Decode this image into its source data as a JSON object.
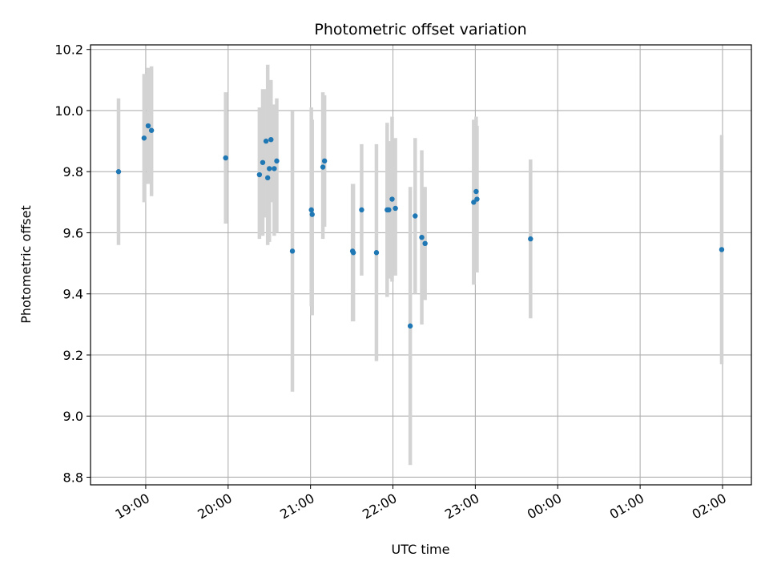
{
  "chart_data": {
    "type": "scatter",
    "title": "Photometric offset variation",
    "xlabel": "UTC time",
    "ylabel": "Photometric offset",
    "x_axis": {
      "unit": "hours",
      "range": [
        18.33,
        26.35
      ],
      "ticks": [
        {
          "value": 19,
          "label": "19:00"
        },
        {
          "value": 20,
          "label": "20:00"
        },
        {
          "value": 21,
          "label": "21:00"
        },
        {
          "value": 22,
          "label": "22:00"
        },
        {
          "value": 23,
          "label": "23:00"
        },
        {
          "value": 24,
          "label": "00:00"
        },
        {
          "value": 25,
          "label": "01:00"
        },
        {
          "value": 26,
          "label": "02:00"
        }
      ]
    },
    "y_axis": {
      "range": [
        8.775,
        10.215
      ],
      "ticks": [
        {
          "value": 8.8,
          "label": "8.8"
        },
        {
          "value": 9.0,
          "label": "9.0"
        },
        {
          "value": 9.2,
          "label": "9.2"
        },
        {
          "value": 9.4,
          "label": "9.4"
        },
        {
          "value": 9.6,
          "label": "9.6"
        },
        {
          "value": 9.8,
          "label": "9.8"
        },
        {
          "value": 10.0,
          "label": "10.0"
        },
        {
          "value": 10.2,
          "label": "10.2"
        }
      ]
    },
    "grid": true,
    "colors": {
      "point": "#1f77b4",
      "errorbar": "#d3d3d3",
      "grid": "#b0b0b0"
    },
    "points": [
      {
        "x": 18.67,
        "y": 9.8,
        "lo": 9.56,
        "hi": 10.04
      },
      {
        "x": 18.98,
        "y": 9.91,
        "lo": 9.7,
        "hi": 10.12
      },
      {
        "x": 19.03,
        "y": 9.95,
        "lo": 9.76,
        "hi": 10.14
      },
      {
        "x": 19.07,
        "y": 9.935,
        "lo": 9.72,
        "hi": 10.145
      },
      {
        "x": 19.97,
        "y": 9.845,
        "lo": 9.63,
        "hi": 10.06
      },
      {
        "x": 20.38,
        "y": 9.79,
        "lo": 9.58,
        "hi": 10.01
      },
      {
        "x": 20.42,
        "y": 9.83,
        "lo": 9.59,
        "hi": 10.07
      },
      {
        "x": 20.46,
        "y": 9.9,
        "lo": 9.65,
        "hi": 10.07
      },
      {
        "x": 20.48,
        "y": 9.78,
        "lo": 9.56,
        "hi": 10.15
      },
      {
        "x": 20.5,
        "y": 9.81,
        "lo": 9.57,
        "hi": 10.1
      },
      {
        "x": 20.52,
        "y": 9.905,
        "lo": 9.7,
        "hi": 10.1
      },
      {
        "x": 20.56,
        "y": 9.81,
        "lo": 9.59,
        "hi": 10.02
      },
      {
        "x": 20.59,
        "y": 9.835,
        "lo": 9.6,
        "hi": 10.04
      },
      {
        "x": 20.78,
        "y": 9.54,
        "lo": 9.08,
        "hi": 10.0
      },
      {
        "x": 21.01,
        "y": 9.675,
        "lo": 9.36,
        "hi": 10.01
      },
      {
        "x": 21.02,
        "y": 9.66,
        "lo": 9.33,
        "hi": 9.97
      },
      {
        "x": 21.15,
        "y": 9.815,
        "lo": 9.58,
        "hi": 10.06
      },
      {
        "x": 21.17,
        "y": 9.835,
        "lo": 9.62,
        "hi": 10.05
      },
      {
        "x": 21.51,
        "y": 9.54,
        "lo": 9.31,
        "hi": 9.76
      },
      {
        "x": 21.52,
        "y": 9.535,
        "lo": 9.31,
        "hi": 9.76
      },
      {
        "x": 21.62,
        "y": 9.675,
        "lo": 9.46,
        "hi": 9.89
      },
      {
        "x": 21.8,
        "y": 9.535,
        "lo": 9.18,
        "hi": 9.89
      },
      {
        "x": 21.93,
        "y": 9.675,
        "lo": 9.39,
        "hi": 9.96
      },
      {
        "x": 21.95,
        "y": 9.675,
        "lo": 9.45,
        "hi": 9.9
      },
      {
        "x": 21.99,
        "y": 9.71,
        "lo": 9.44,
        "hi": 9.98
      },
      {
        "x": 22.03,
        "y": 9.68,
        "lo": 9.46,
        "hi": 9.91
      },
      {
        "x": 22.21,
        "y": 9.295,
        "lo": 8.84,
        "hi": 9.75
      },
      {
        "x": 22.27,
        "y": 9.655,
        "lo": 9.4,
        "hi": 9.91
      },
      {
        "x": 22.35,
        "y": 9.585,
        "lo": 9.3,
        "hi": 9.87
      },
      {
        "x": 22.39,
        "y": 9.565,
        "lo": 9.38,
        "hi": 9.75
      },
      {
        "x": 22.98,
        "y": 9.7,
        "lo": 9.43,
        "hi": 9.97
      },
      {
        "x": 23.01,
        "y": 9.735,
        "lo": 9.47,
        "hi": 9.98
      },
      {
        "x": 23.02,
        "y": 9.71,
        "lo": 9.47,
        "hi": 9.95
      },
      {
        "x": 23.67,
        "y": 9.58,
        "lo": 9.32,
        "hi": 9.84
      },
      {
        "x": 25.99,
        "y": 9.545,
        "lo": 9.17,
        "hi": 9.92
      }
    ]
  }
}
